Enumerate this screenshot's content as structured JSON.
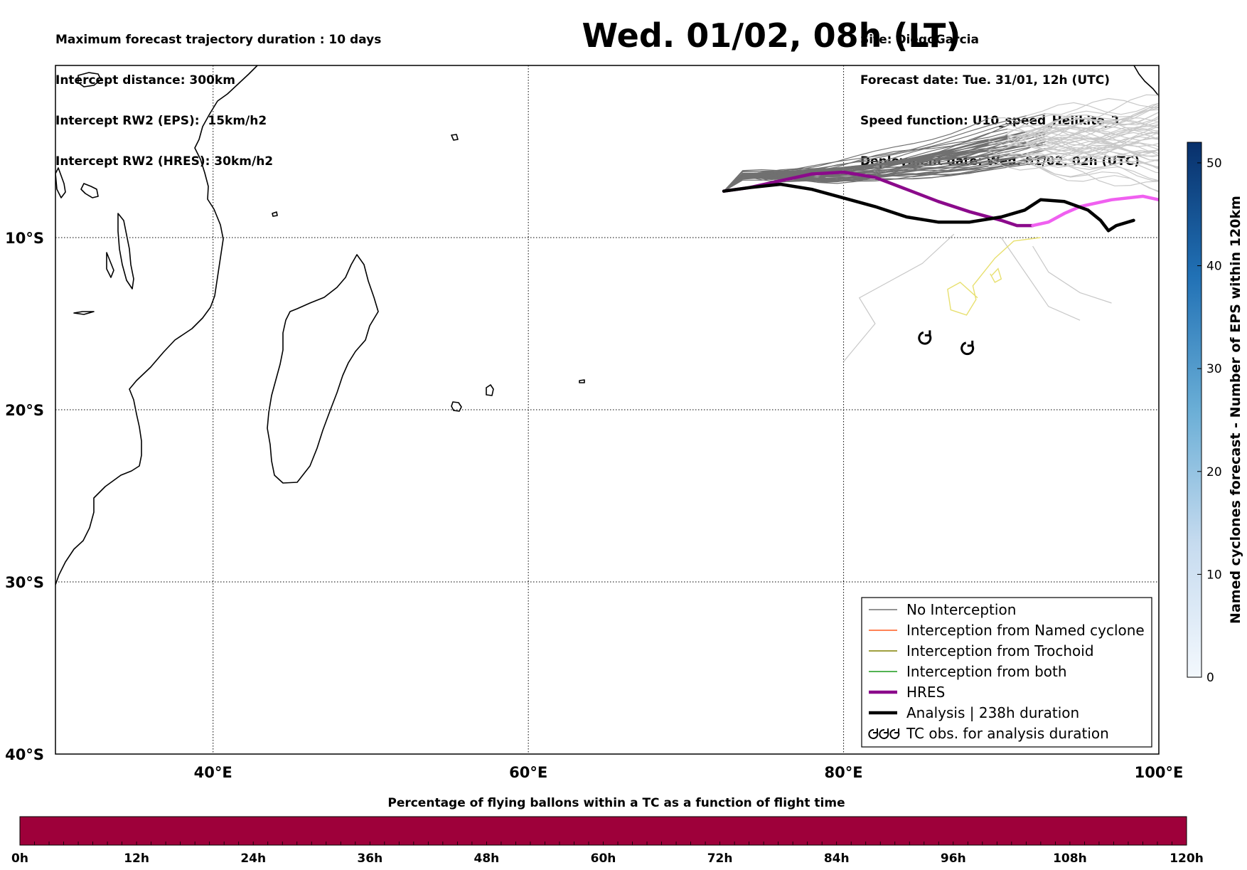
{
  "header": {
    "left_lines": [
      "Maximum forecast trajectory duration : 10 days",
      "Intercept distance: 300km",
      "Intercept RW2 (EPS):  15km/h2",
      "Intercept RW2 (HRES): 30km/h2"
    ],
    "right_lines": [
      "Site: DiegoGarcia",
      "Forecast date: Tue. 31/01, 12h (UTC)",
      "Speed function: U10_speed_Helikite_3",
      "Deployment date: Wed. 01/02, 02h (UTC)"
    ],
    "title": "Wed. 01/02, 08h (LT)"
  },
  "map": {
    "lon_range": [
      30,
      100
    ],
    "lat_range": [
      -40,
      0
    ],
    "lon_ticks": [
      {
        "value": 40,
        "label": "40°E"
      },
      {
        "value": 60,
        "label": "60°E"
      },
      {
        "value": 80,
        "label": "80°E"
      },
      {
        "value": 100,
        "label": "100°E"
      }
    ],
    "lat_ticks": [
      {
        "value": -10,
        "label": "10°S"
      },
      {
        "value": -20,
        "label": "20°S"
      },
      {
        "value": -30,
        "label": "30°S"
      },
      {
        "value": -40,
        "label": "40°S"
      }
    ],
    "colors": {
      "no_interception": "#707070",
      "named_cyclone": "#ff5a1e",
      "trochoid": "#808000",
      "both": "#1a9a1a",
      "hres": "#8b0a8b",
      "hres_late": "#f060f0",
      "analysis": "#000000",
      "late_track": "#c8c8c8",
      "yellow_track": "#e8e070"
    },
    "launch_site": {
      "lon": 72.4,
      "lat": -7.3
    },
    "hres_track": [
      [
        72.4,
        -7.3
      ],
      [
        74,
        -7.1
      ],
      [
        76,
        -6.7
      ],
      [
        78,
        -6.3
      ],
      [
        80,
        -6.2
      ],
      [
        82,
        -6.5
      ],
      [
        84,
        -7.2
      ],
      [
        86,
        -7.9
      ],
      [
        88,
        -8.5
      ],
      [
        90,
        -9.0
      ],
      [
        91,
        -9.3
      ],
      [
        92,
        -9.3
      ]
    ],
    "hres_late_track": [
      [
        92,
        -9.3
      ],
      [
        93,
        -9.1
      ],
      [
        94,
        -8.6
      ],
      [
        95,
        -8.2
      ],
      [
        97,
        -7.8
      ],
      [
        99,
        -7.6
      ],
      [
        100,
        -7.8
      ]
    ],
    "analysis_track": [
      [
        72.4,
        -7.3
      ],
      [
        74,
        -7.1
      ],
      [
        76,
        -6.9
      ],
      [
        78,
        -7.2
      ],
      [
        80,
        -7.7
      ],
      [
        82,
        -8.2
      ],
      [
        84,
        -8.8
      ],
      [
        86,
        -9.1
      ],
      [
        88,
        -9.1
      ],
      [
        90,
        -8.8
      ],
      [
        91.5,
        -8.4
      ],
      [
        92.5,
        -7.8
      ],
      [
        94,
        -7.9
      ],
      [
        95.5,
        -8.4
      ],
      [
        96.3,
        -9.0
      ],
      [
        96.8,
        -9.6
      ],
      [
        97.3,
        -9.3
      ],
      [
        98.4,
        -9.0
      ]
    ],
    "tc_observations": [
      {
        "lon": 85.2,
        "lat": -15.8
      },
      {
        "lon": 87.9,
        "lat": -16.4
      }
    ]
  },
  "legend": {
    "items": [
      {
        "label": "No Interception",
        "color": "#707070",
        "style": "thin"
      },
      {
        "label": "Interception from Named cyclone",
        "color": "#ff5a1e",
        "style": "thin"
      },
      {
        "label": "Interception from Trochoid",
        "color": "#808000",
        "style": "thin"
      },
      {
        "label": "Interception from both",
        "color": "#1a9a1a",
        "style": "thin"
      },
      {
        "label": "HRES",
        "color": "#8b0a8b",
        "style": "thick"
      },
      {
        "label": "Analysis | 238h duration",
        "color": "#000000",
        "style": "thick"
      },
      {
        "label": "TC obs. for analysis duration",
        "color": "#000000",
        "style": "symbol"
      }
    ]
  },
  "colorbar_right": {
    "label": "Named cyclones forecast - Number of EPS within 120km",
    "min": 0,
    "max": 52,
    "ticks": [
      0,
      10,
      20,
      30,
      40,
      50
    ],
    "color_low": "#e3eef9",
    "color_high": "#0a306b"
  },
  "colorbar_bottom": {
    "title": "Percentage of flying ballons within a TC as a function of flight time",
    "labels": [
      "0h",
      "12h",
      "24h",
      "36h",
      "48h",
      "60h",
      "72h",
      "84h",
      "96h",
      "108h",
      "120h"
    ],
    "fill_color": "#9e003a"
  }
}
